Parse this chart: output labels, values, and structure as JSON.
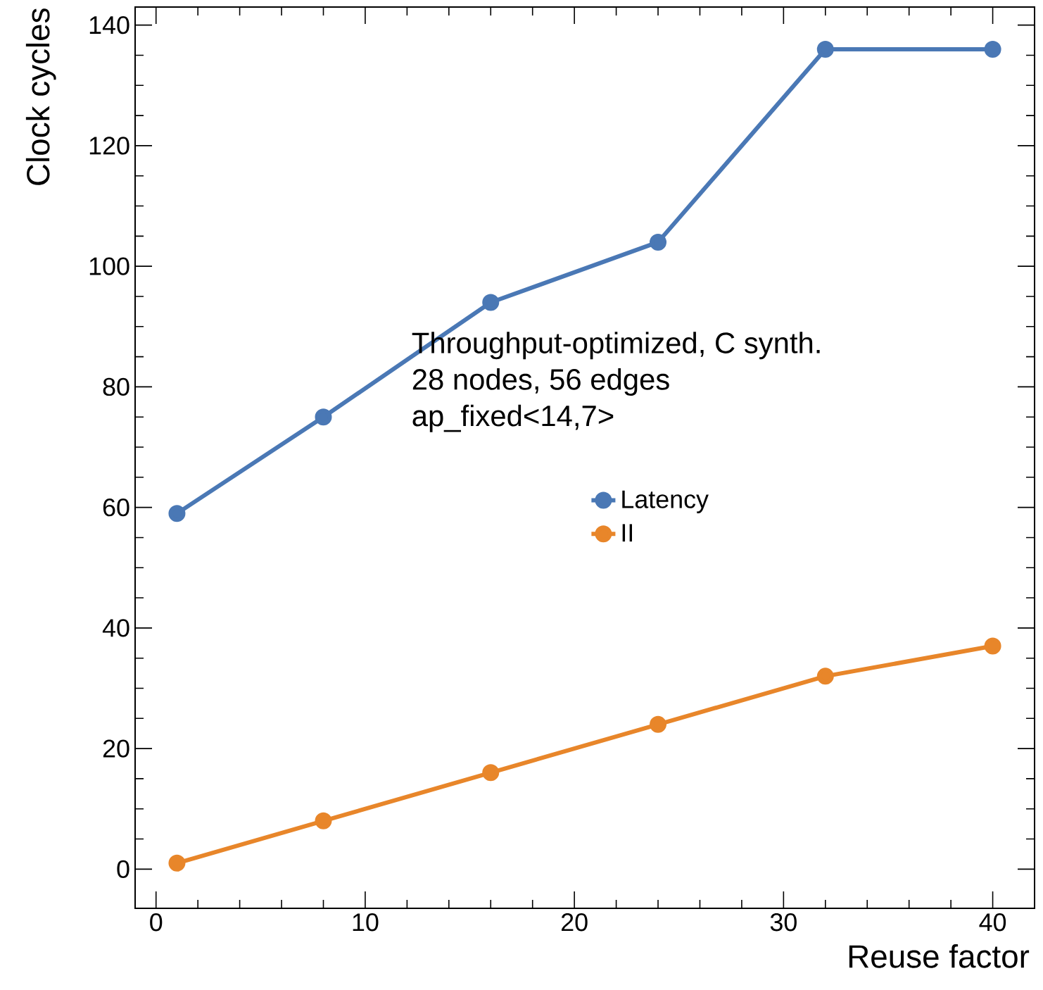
{
  "chart_data": {
    "type": "line",
    "xlabel": "Reuse factor",
    "ylabel": "Clock cycles",
    "annotations": [
      "Throughput-optimized, C synth.",
      "28 nodes, 56 edges",
      "ap_fixed<14,7>"
    ],
    "x": [
      1,
      8,
      16,
      24,
      32,
      40
    ],
    "series": [
      {
        "name": "Latency",
        "color": "#4a78b5",
        "values": [
          59,
          75,
          94,
          104,
          136,
          136
        ]
      },
      {
        "name": "II",
        "color": "#e8862a",
        "values": [
          1,
          8,
          16,
          24,
          32,
          37
        ]
      }
    ],
    "xlim": [
      -1,
      42
    ],
    "ylim": [
      -6.5,
      143
    ],
    "xticks": [
      0,
      10,
      20,
      30,
      40
    ],
    "yticks": [
      0,
      20,
      40,
      60,
      80,
      100,
      120,
      140
    ],
    "legend": "center right",
    "marker": "circle",
    "line_style": "solid",
    "grid": false
  }
}
